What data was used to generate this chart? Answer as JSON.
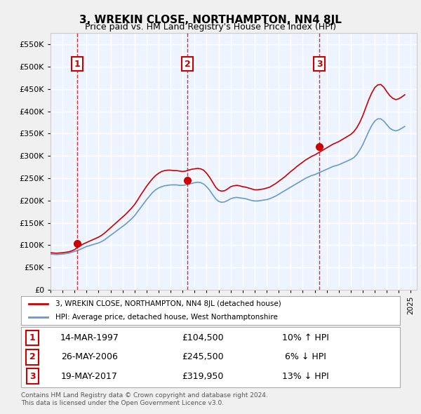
{
  "title": "3, WREKIN CLOSE, NORTHAMPTON, NN4 8JL",
  "subtitle": "Price paid vs. HM Land Registry's House Price Index (HPI)",
  "ylim": [
    0,
    575000
  ],
  "yticks": [
    0,
    50000,
    100000,
    150000,
    200000,
    250000,
    300000,
    350000,
    400000,
    450000,
    500000,
    550000
  ],
  "xlim_start": 1995.0,
  "xlim_end": 2025.5,
  "sale_dates": [
    1997.2,
    2006.4,
    2017.38
  ],
  "sale_prices": [
    104500,
    245500,
    319950
  ],
  "sale_labels": [
    "1",
    "2",
    "3"
  ],
  "red_line_color": "#cc0000",
  "blue_line_color": "#6699cc",
  "background_color": "#ddeeff",
  "plot_bg_color": "#eef4ff",
  "grid_color": "#ffffff",
  "legend_line1": "3, WREKIN CLOSE, NORTHAMPTON, NN4 8JL (detached house)",
  "legend_line2": "HPI: Average price, detached house, West Northamptonshire",
  "table_data": [
    [
      "1",
      "14-MAR-1997",
      "£104,500",
      "10% ↑ HPI"
    ],
    [
      "2",
      "26-MAY-2006",
      "£245,500",
      "6% ↓ HPI"
    ],
    [
      "3",
      "19-MAY-2017",
      "£319,950",
      "13% ↓ HPI"
    ]
  ],
  "footer": "Contains HM Land Registry data © Crown copyright and database right 2024.\nThis data is licensed under the Open Government Licence v3.0.",
  "hpi_years": [
    1995.0,
    1995.25,
    1995.5,
    1995.75,
    1996.0,
    1996.25,
    1996.5,
    1996.75,
    1997.0,
    1997.25,
    1997.5,
    1997.75,
    1998.0,
    1998.25,
    1998.5,
    1998.75,
    1999.0,
    1999.25,
    1999.5,
    1999.75,
    2000.0,
    2000.25,
    2000.5,
    2000.75,
    2001.0,
    2001.25,
    2001.5,
    2001.75,
    2002.0,
    2002.25,
    2002.5,
    2002.75,
    2003.0,
    2003.25,
    2003.5,
    2003.75,
    2004.0,
    2004.25,
    2004.5,
    2004.75,
    2005.0,
    2005.25,
    2005.5,
    2005.75,
    2006.0,
    2006.25,
    2006.5,
    2006.75,
    2007.0,
    2007.25,
    2007.5,
    2007.75,
    2008.0,
    2008.25,
    2008.5,
    2008.75,
    2009.0,
    2009.25,
    2009.5,
    2009.75,
    2010.0,
    2010.25,
    2010.5,
    2010.75,
    2011.0,
    2011.25,
    2011.5,
    2011.75,
    2012.0,
    2012.25,
    2012.5,
    2012.75,
    2013.0,
    2013.25,
    2013.5,
    2013.75,
    2014.0,
    2014.25,
    2014.5,
    2014.75,
    2015.0,
    2015.25,
    2015.5,
    2015.75,
    2016.0,
    2016.25,
    2016.5,
    2016.75,
    2017.0,
    2017.25,
    2017.5,
    2017.75,
    2018.0,
    2018.25,
    2018.5,
    2018.75,
    2019.0,
    2019.25,
    2019.5,
    2019.75,
    2020.0,
    2020.25,
    2020.5,
    2020.75,
    2021.0,
    2021.25,
    2021.5,
    2021.75,
    2022.0,
    2022.25,
    2022.5,
    2022.75,
    2023.0,
    2023.25,
    2023.5,
    2023.75,
    2024.0,
    2024.25,
    2024.5
  ],
  "hpi_values": [
    80000,
    79500,
    79000,
    79500,
    80000,
    81000,
    82000,
    84000,
    86000,
    88000,
    91000,
    94000,
    97000,
    99000,
    101000,
    103000,
    105000,
    108000,
    112000,
    117000,
    122000,
    127000,
    132000,
    137000,
    142000,
    147000,
    153000,
    159000,
    166000,
    175000,
    184000,
    193000,
    202000,
    210000,
    218000,
    224000,
    228000,
    231000,
    233000,
    234000,
    235000,
    235000,
    235000,
    234000,
    234000,
    235000,
    237000,
    238000,
    240000,
    241000,
    240000,
    237000,
    231000,
    223000,
    213000,
    204000,
    198000,
    196000,
    197000,
    200000,
    204000,
    206000,
    207000,
    206000,
    205000,
    204000,
    202000,
    200000,
    199000,
    199000,
    200000,
    201000,
    202000,
    204000,
    207000,
    210000,
    214000,
    218000,
    222000,
    226000,
    230000,
    234000,
    238000,
    242000,
    246000,
    250000,
    253000,
    256000,
    258000,
    261000,
    264000,
    267000,
    270000,
    273000,
    276000,
    278000,
    280000,
    283000,
    286000,
    289000,
    292000,
    296000,
    303000,
    313000,
    325000,
    340000,
    355000,
    368000,
    378000,
    383000,
    383000,
    378000,
    370000,
    362000,
    358000,
    356000,
    358000,
    362000,
    366000
  ],
  "price_years": [
    1995.0,
    1995.25,
    1995.5,
    1995.75,
    1996.0,
    1996.25,
    1996.5,
    1996.75,
    1997.0,
    1997.25,
    1997.5,
    1997.75,
    1998.0,
    1998.25,
    1998.5,
    1998.75,
    1999.0,
    1999.25,
    1999.5,
    1999.75,
    2000.0,
    2000.25,
    2000.5,
    2000.75,
    2001.0,
    2001.25,
    2001.5,
    2001.75,
    2002.0,
    2002.25,
    2002.5,
    2002.75,
    2003.0,
    2003.25,
    2003.5,
    2003.75,
    2004.0,
    2004.25,
    2004.5,
    2004.75,
    2005.0,
    2005.25,
    2005.5,
    2005.75,
    2006.0,
    2006.25,
    2006.5,
    2006.75,
    2007.0,
    2007.25,
    2007.5,
    2007.75,
    2008.0,
    2008.25,
    2008.5,
    2008.75,
    2009.0,
    2009.25,
    2009.5,
    2009.75,
    2010.0,
    2010.25,
    2010.5,
    2010.75,
    2011.0,
    2011.25,
    2011.5,
    2011.75,
    2012.0,
    2012.25,
    2012.5,
    2012.75,
    2013.0,
    2013.25,
    2013.5,
    2013.75,
    2014.0,
    2014.25,
    2014.5,
    2014.75,
    2015.0,
    2015.25,
    2015.5,
    2015.75,
    2016.0,
    2016.25,
    2016.5,
    2016.75,
    2017.0,
    2017.25,
    2017.5,
    2017.75,
    2018.0,
    2018.25,
    2018.5,
    2018.75,
    2019.0,
    2019.25,
    2019.5,
    2019.75,
    2020.0,
    2020.25,
    2020.5,
    2020.75,
    2021.0,
    2021.25,
    2021.5,
    2021.75,
    2022.0,
    2022.25,
    2022.5,
    2022.75,
    2023.0,
    2023.25,
    2023.5,
    2023.75,
    2024.0,
    2024.25,
    2024.5
  ],
  "price_values": [
    83000,
    82500,
    82000,
    82500,
    83000,
    84000,
    85000,
    87000,
    90000,
    95000,
    99000,
    103000,
    106000,
    109000,
    112000,
    115000,
    118000,
    122000,
    127000,
    133000,
    139000,
    145000,
    151000,
    157000,
    163000,
    169000,
    176000,
    183000,
    191000,
    201000,
    212000,
    222000,
    232000,
    241000,
    249000,
    256000,
    261000,
    265000,
    267000,
    268000,
    268000,
    267000,
    267000,
    266000,
    265000,
    266000,
    268000,
    270000,
    271000,
    272000,
    271000,
    268000,
    261000,
    252000,
    241000,
    230000,
    223000,
    221000,
    222000,
    226000,
    231000,
    233000,
    234000,
    233000,
    231000,
    230000,
    228000,
    226000,
    224000,
    224000,
    225000,
    226000,
    228000,
    230000,
    234000,
    238000,
    243000,
    248000,
    253000,
    259000,
    265000,
    270000,
    276000,
    281000,
    286000,
    291000,
    295000,
    299000,
    302000,
    306000,
    310000,
    314000,
    318000,
    322000,
    326000,
    329000,
    332000,
    336000,
    340000,
    344000,
    348000,
    354000,
    363000,
    375000,
    390000,
    408000,
    426000,
    441000,
    453000,
    459000,
    460000,
    454000,
    444000,
    435000,
    429000,
    426000,
    428000,
    432000,
    437000
  ]
}
